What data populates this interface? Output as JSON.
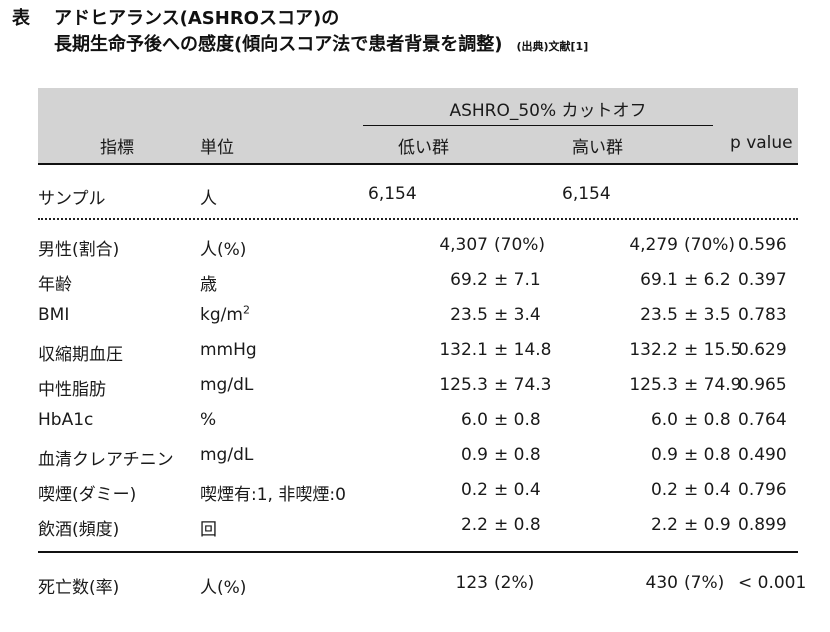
{
  "caption": {
    "prefix": "表",
    "title_line1": "アドヒアランス(ASHROスコア)の",
    "title_line2": "長期生命予後への感度(傾向スコア法で患者背景を調整)",
    "source": "(出典)文献[1]"
  },
  "table": {
    "group_header": "ASHRO_50% カットオフ",
    "columns": {
      "indicator": "指標",
      "unit": "単位",
      "low_group": "低い群",
      "high_group": "高い群",
      "p_value": "p value"
    },
    "sample_row": {
      "indicator": "サンプル",
      "unit": "人",
      "low": "6,154",
      "high": "6,154"
    },
    "rows": [
      {
        "indicator": "男性(割合)",
        "unit": "人(%)",
        "low_mean": "4,307",
        "low_sd": "(70%)",
        "high_mean": "4,279",
        "high_sd": "(70%)",
        "p": "0.596"
      },
      {
        "indicator": "年齢",
        "unit": "歳",
        "low_mean": "69.2",
        "low_sd": "± 7.1",
        "high_mean": "69.1",
        "high_sd": "± 6.2",
        "p": "0.397"
      },
      {
        "indicator": "BMI",
        "unit_base": "kg/m",
        "unit_sup": "2",
        "low_mean": "23.5",
        "low_sd": "± 3.4",
        "high_mean": "23.5",
        "high_sd": "± 3.5",
        "p": "0.783"
      },
      {
        "indicator": "収縮期血圧",
        "unit": "mmHg",
        "low_mean": "132.1",
        "low_sd": "± 14.8",
        "high_mean": "132.2",
        "high_sd": "± 15.5",
        "p": "0.629"
      },
      {
        "indicator": "中性脂肪",
        "unit": "mg/dL",
        "low_mean": "125.3",
        "low_sd": "± 74.3",
        "high_mean": "125.3",
        "high_sd": "± 74.9",
        "p": "0.965"
      },
      {
        "indicator": "HbA1c",
        "unit": "%",
        "low_mean": "6.0",
        "low_sd": "± 0.8",
        "high_mean": "6.0",
        "high_sd": "± 0.8",
        "p": "0.764"
      },
      {
        "indicator": "血清クレアチニン",
        "unit": "mg/dL",
        "low_mean": "0.9",
        "low_sd": "± 0.8",
        "high_mean": "0.9",
        "high_sd": "± 0.8",
        "p": "0.490"
      },
      {
        "indicator": "喫煙(ダミー)",
        "unit": "喫煙有:1, 非喫煙:0",
        "low_mean": "0.2",
        "low_sd": "± 0.4",
        "high_mean": "0.2",
        "high_sd": "± 0.4",
        "p": "0.796"
      },
      {
        "indicator": "飲酒(頻度)",
        "unit": "回",
        "low_mean": "2.2",
        "low_sd": "± 0.8",
        "high_mean": "2.2",
        "high_sd": "± 0.9",
        "p": "0.899"
      }
    ],
    "mortality_row": {
      "indicator": "死亡数(率)",
      "unit": "人(%)",
      "low_mean": "123",
      "low_sd": "(2%)",
      "high_mean": "430",
      "high_sd": "(7%)",
      "p": "< 0.001"
    }
  },
  "colors": {
    "header_band": "#d3d3d3",
    "text": "#1a1a1a",
    "rules": "#111111"
  }
}
